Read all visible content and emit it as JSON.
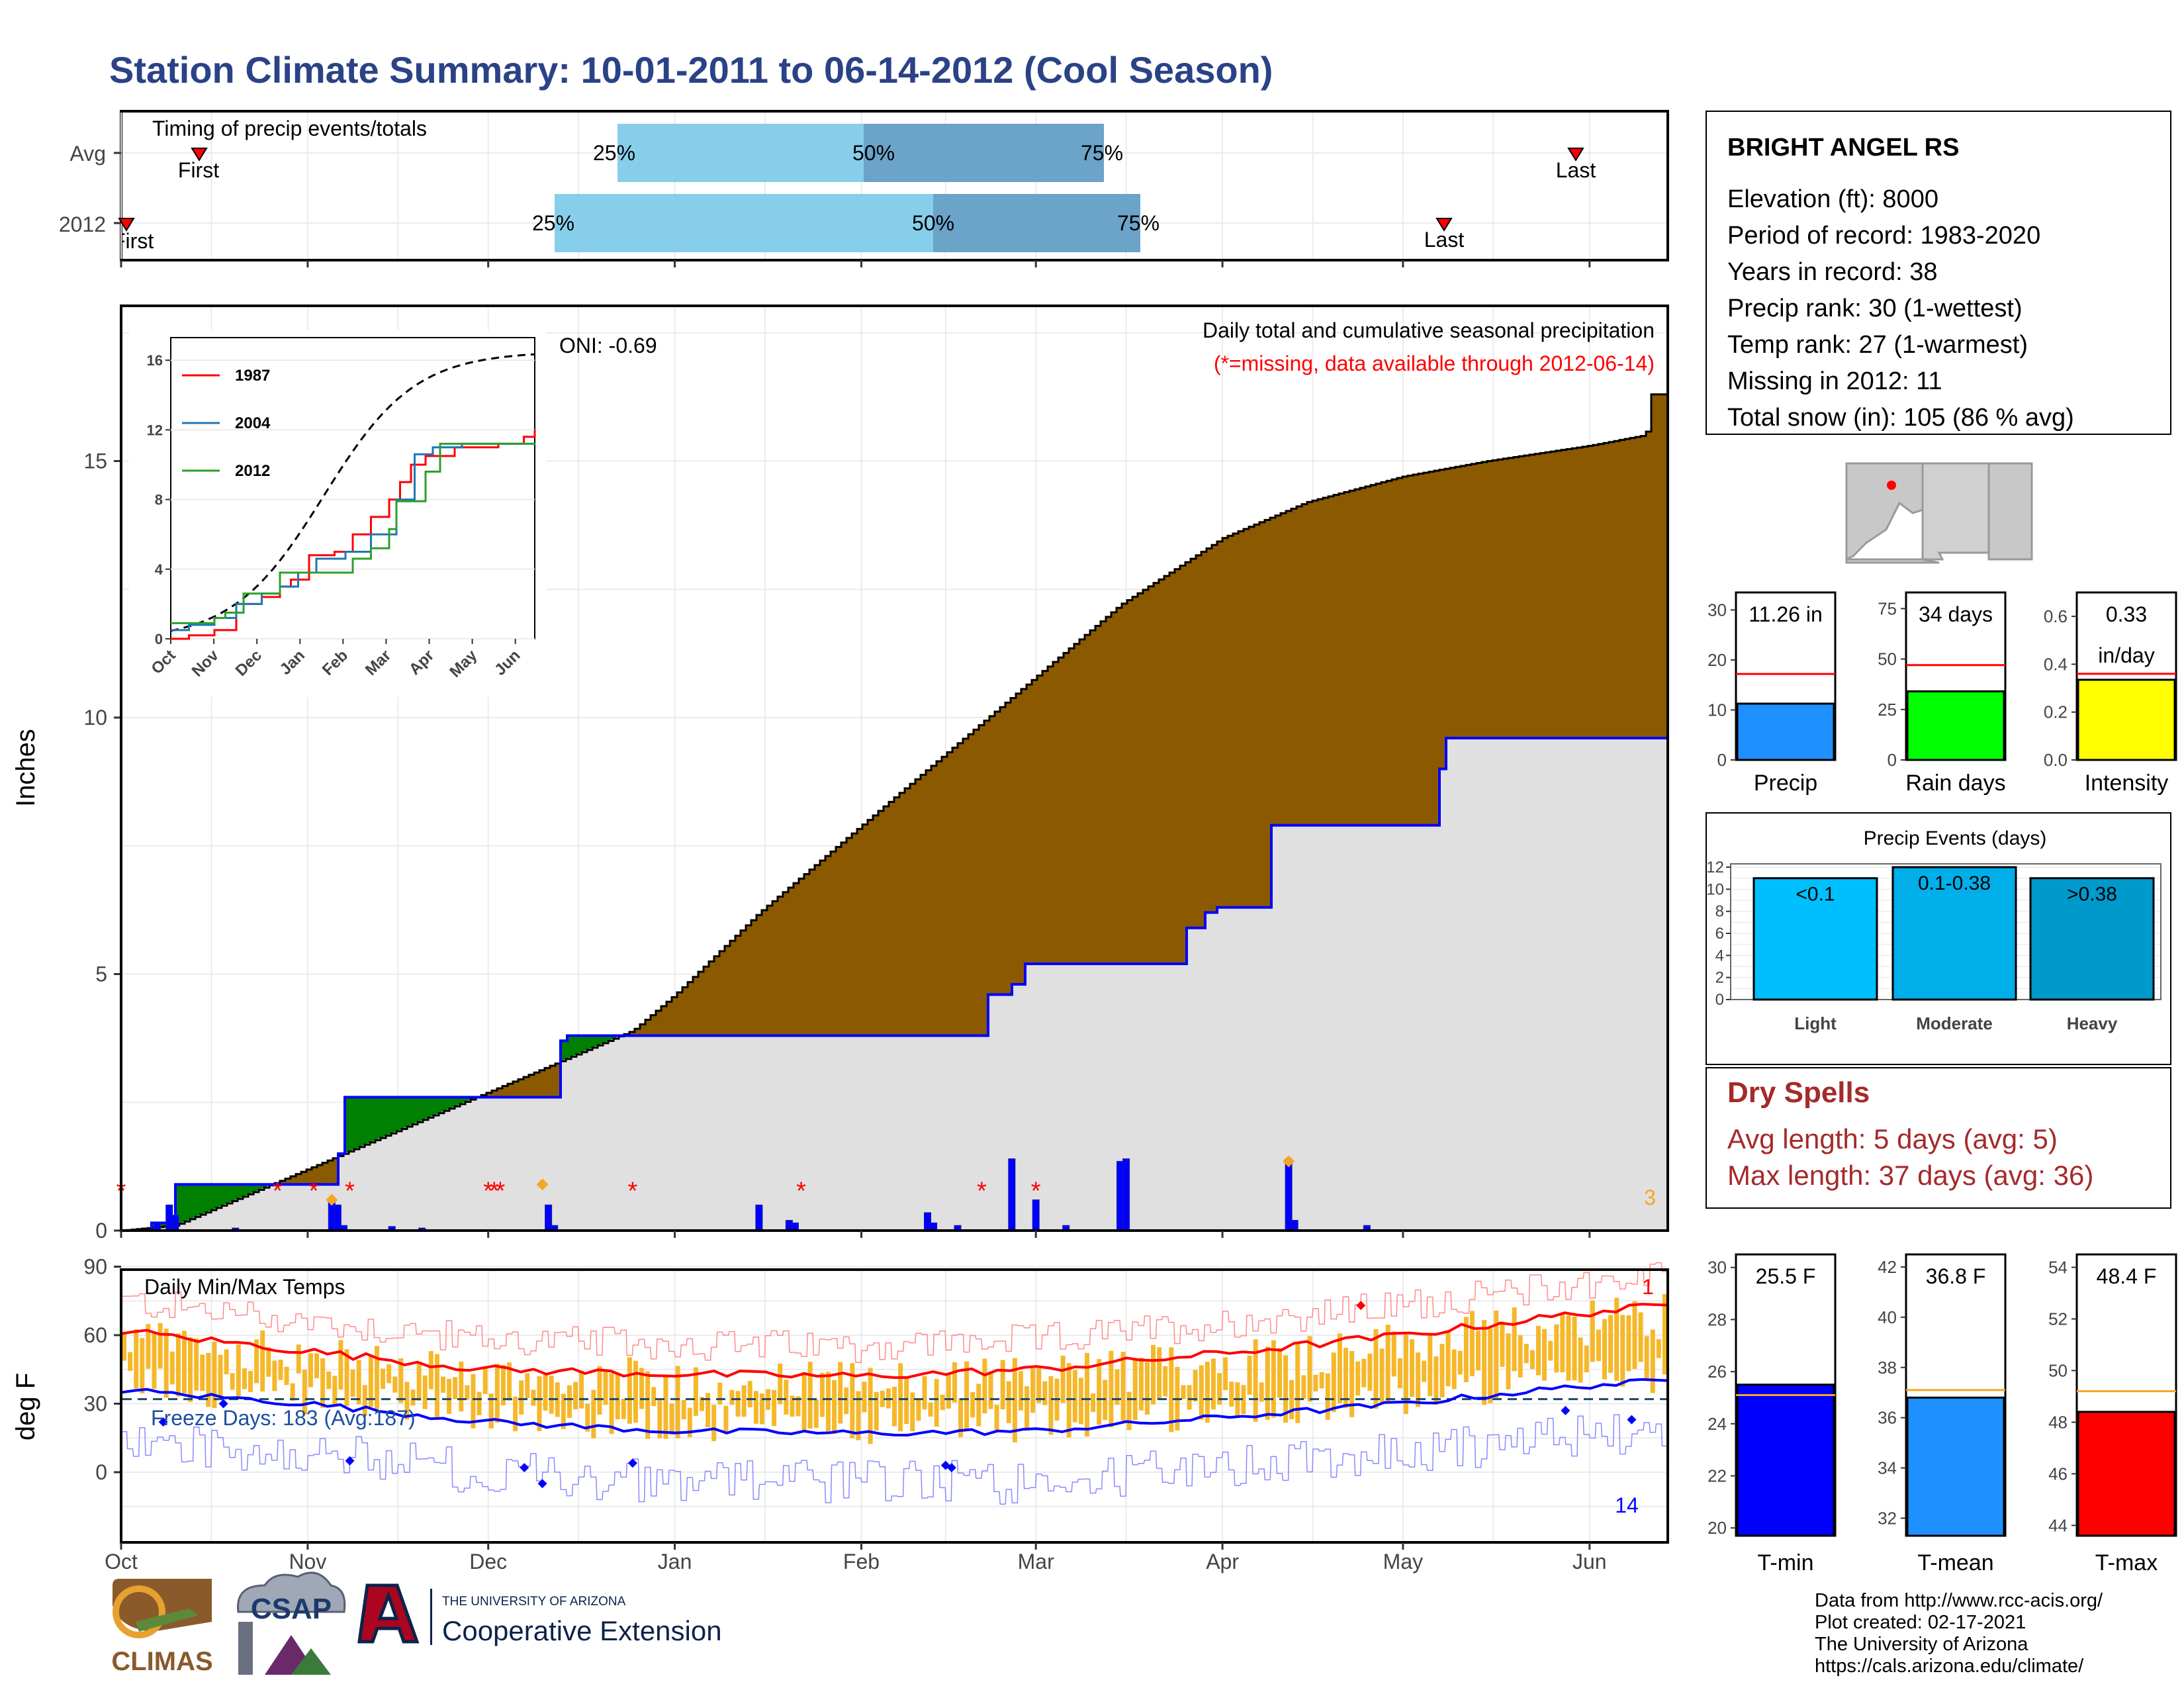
{
  "title": "Station Climate Summary: 10-01-2011 to 06-14-2012 (Cool Season)",
  "colors": {
    "title": "#2a4286",
    "dry_spells": "#a52a2a",
    "brown": "#8b5a00",
    "green": "#008000",
    "blue": "#0000ff",
    "gray_area": "#e0e0e0",
    "orange": "#f5b82a",
    "red": "#ff0000",
    "light_blue": "#87ceeb",
    "mid_blue": "#6ba3c9"
  },
  "station": {
    "name": "BRIGHT ANGEL RS",
    "lines": [
      "Elevation (ft): 8000",
      "Period of record: 1983-2020",
      "Years in record: 38",
      "Precip rank: 30 (1-wettest)",
      "Temp rank: 27 (1-warmest)",
      "Missing in 2012: 11",
      "Total snow (in): 105 (86 % avg)"
    ]
  },
  "timing": {
    "label": "Timing of precip events/totals",
    "rows": [
      "Avg",
      "2012"
    ],
    "first_label": "First",
    "last_label": "Last",
    "pct": [
      "25%",
      "50%",
      "75%"
    ]
  },
  "main": {
    "ylabel": "Inches",
    "note1": "Daily total and cumulative seasonal precipitation",
    "note2": "(*=missing, data available through 2012-06-14)",
    "oni": "ONI: -0.69",
    "corner_count": "3",
    "yticks": [
      "0",
      "5",
      "10",
      "15"
    ]
  },
  "inset": {
    "series": [
      "1987",
      "2004",
      "2012"
    ],
    "yticks": [
      "0",
      "4",
      "8",
      "12",
      "16"
    ],
    "xticks": [
      "Oct",
      "Nov",
      "Dec",
      "Jan",
      "Feb",
      "Mar",
      "Apr",
      "May",
      "Jun"
    ]
  },
  "temps": {
    "ylabel": "deg F",
    "label": "Daily Min/Max Temps",
    "freeze": "Freeze Days: 183 (Avg:187)",
    "count_top": "1",
    "count_bottom": "14",
    "yticks": [
      "0",
      "30",
      "60",
      "90"
    ]
  },
  "months": [
    "Oct",
    "Nov",
    "Dec",
    "Jan",
    "Feb",
    "Mar",
    "Apr",
    "May",
    "Jun"
  ],
  "bars_top": [
    {
      "label": "Precip",
      "value_text": "11.26 in",
      "value": 11.26,
      "avg": 17.2,
      "ymax": 33.5,
      "ticks": [
        "0",
        "10",
        "20",
        "30"
      ],
      "color": "#1e90ff"
    },
    {
      "label": "Rain days",
      "value_text": "34 days",
      "value": 34,
      "avg": 47,
      "ymax": 83,
      "ticks": [
        "0",
        "25",
        "50",
        "75"
      ],
      "color": "#00ff00"
    },
    {
      "label": "Intensity",
      "value_text": "0.33",
      "value_text2": "in/day",
      "value": 0.335,
      "avg": 0.36,
      "ymax": 0.7,
      "ticks": [
        "0.0",
        "0.2",
        "0.4",
        "0.6"
      ],
      "color": "#ffff00"
    }
  ],
  "events": {
    "title": "Precip Events (days)",
    "categories": [
      "Light",
      "Moderate",
      "Heavy"
    ],
    "labels": [
      "<0.1",
      "0.1-0.38",
      ">0.38"
    ],
    "values": [
      11,
      12,
      11
    ],
    "ticks": [
      "0",
      "2",
      "4",
      "6",
      "8",
      "10",
      "12"
    ]
  },
  "dry": {
    "title": "Dry Spells",
    "avg": "Avg length: 5 days (avg: 5)",
    "max": "Max length: 37 days (avg: 36)"
  },
  "bars_bottom": [
    {
      "label": "T-min",
      "value_text": "25.5 F",
      "value": 25.5,
      "avg": 25.1,
      "min": 19.7,
      "max": 30.5,
      "ticks": [
        "20",
        "22",
        "24",
        "26",
        "28",
        "30"
      ],
      "color": "#0000ff"
    },
    {
      "label": "T-mean",
      "value_text": "36.8 F",
      "value": 36.8,
      "avg": 37.1,
      "min": 31.3,
      "max": 42.5,
      "ticks": [
        "32",
        "34",
        "36",
        "38",
        "40",
        "42"
      ],
      "color": "#1e90ff"
    },
    {
      "label": "T-max",
      "value_text": "48.4 F",
      "value": 48.4,
      "avg": 49.2,
      "min": 43.6,
      "max": 54.5,
      "ticks": [
        "44",
        "46",
        "48",
        "50",
        "52",
        "54"
      ],
      "color": "#ff0000"
    }
  ],
  "footer": [
    "Data from http://www.rcc-acis.org/",
    "Plot created: 02-17-2021",
    "The University of Arizona",
    "https://cals.arizona.edu/climate/"
  ],
  "logos": {
    "climas": "CLIMAS",
    "csap": "CSAP",
    "ua_small": "THE UNIVERSITY OF ARIZONA",
    "ua_big": "Cooperative Extension"
  },
  "chart_data": [
    {
      "type": "area",
      "title": "Daily total and cumulative seasonal precipitation",
      "ylabel": "Inches",
      "ylim": [
        0,
        18
      ],
      "x": [
        "2011-10-01",
        "2011-10-10",
        "2011-11-01",
        "2011-11-05",
        "2011-11-15",
        "2011-12-01",
        "2011-12-11",
        "2011-12-25",
        "2012-01-01",
        "2012-01-15",
        "2012-02-01",
        "2012-02-15",
        "2012-03-01",
        "2012-03-15",
        "2012-04-01",
        "2012-04-15",
        "2012-05-01",
        "2012-05-15",
        "2012-06-01",
        "2012-06-10",
        "2012-06-14"
      ],
      "series": [
        {
          "name": "Avg",
          "values": [
            0,
            0.1,
            1.2,
            1.4,
            1.9,
            2.7,
            3.2,
            3.9,
            4.6,
            6.2,
            7.9,
            9.3,
            10.8,
            12.2,
            13.5,
            14.2,
            14.7,
            15.0,
            15.3,
            15.5,
            16.3
          ]
        },
        {
          "name": "2012",
          "values": [
            0,
            0.9,
            0.9,
            1.5,
            2.6,
            2.6,
            3.8,
            3.8,
            3.8,
            4.6,
            5.2,
            6.3,
            7.9,
            9.6,
            9.6,
            11.2,
            11.2,
            11.2,
            11.26,
            11.26,
            11.26
          ]
        }
      ]
    },
    {
      "type": "line",
      "title": "Daily Min/Max Temps",
      "ylabel": "deg F",
      "ylim": [
        -20,
        95
      ],
      "x": [
        "2011-10-01",
        "2011-11-01",
        "2011-12-01",
        "2012-01-01",
        "2012-02-01",
        "2012-03-01",
        "2012-04-01",
        "2012-05-01",
        "2012-06-01",
        "2012-06-14"
      ],
      "series": [
        {
          "name": "Avg max",
          "values": [
            62,
            53,
            45,
            43,
            42,
            45,
            52,
            60,
            70,
            73
          ]
        },
        {
          "name": "Avg min",
          "values": [
            36,
            30,
            22,
            18,
            17,
            18,
            24,
            30,
            38,
            40
          ]
        }
      ]
    }
  ]
}
